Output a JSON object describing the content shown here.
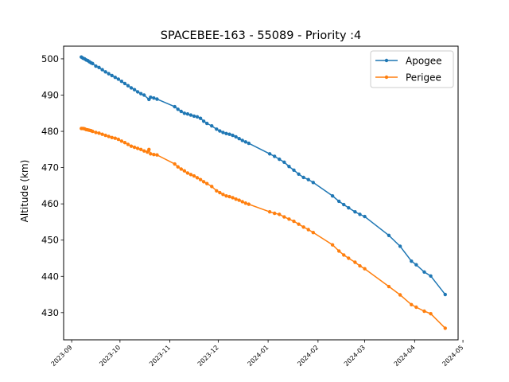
{
  "chart_data": {
    "type": "line",
    "title": "SPACEBEE-163 - 55089 - Priority :4",
    "xlabel": "",
    "ylabel": "Altitude (km)",
    "ylim": [
      422.5,
      503.5
    ],
    "xlim": [
      "2023-08-27",
      "2024-04-28"
    ],
    "x_ticks": [
      "2023-09",
      "2023-10",
      "2023-11",
      "2023-12",
      "2024-01",
      "2024-02",
      "2024-03",
      "2024-04",
      "2024-05"
    ],
    "y_ticks": [
      430,
      440,
      450,
      460,
      470,
      480,
      490,
      500
    ],
    "grid": false,
    "legend": "top-right",
    "colors": {
      "Apogee": "#1f77b4",
      "Perigee": "#ff7f0e"
    },
    "series": [
      {
        "name": "Apogee",
        "points": [
          [
            "2023-09-07",
            500.5
          ],
          [
            "2023-09-08",
            500.2
          ],
          [
            "2023-09-09",
            500.0
          ],
          [
            "2023-09-10",
            499.7
          ],
          [
            "2023-09-11",
            499.5
          ],
          [
            "2023-09-12",
            499.2
          ],
          [
            "2023-09-13",
            498.9
          ],
          [
            "2023-09-14",
            498.7
          ],
          [
            "2023-09-16",
            498.0
          ],
          [
            "2023-09-18",
            497.6
          ],
          [
            "2023-09-20",
            497.0
          ],
          [
            "2023-09-22",
            496.4
          ],
          [
            "2023-09-24",
            495.9
          ],
          [
            "2023-09-26",
            495.4
          ],
          [
            "2023-09-28",
            494.9
          ],
          [
            "2023-09-30",
            494.4
          ],
          [
            "2023-10-02",
            493.8
          ],
          [
            "2023-10-04",
            493.2
          ],
          [
            "2023-10-06",
            492.6
          ],
          [
            "2023-10-08",
            492.0
          ],
          [
            "2023-10-10",
            491.5
          ],
          [
            "2023-10-12",
            490.9
          ],
          [
            "2023-10-14",
            490.4
          ],
          [
            "2023-10-16",
            490.0
          ],
          [
            "2023-10-19",
            488.8
          ],
          [
            "2023-10-20",
            489.4
          ],
          [
            "2023-10-22",
            489.2
          ],
          [
            "2023-10-24",
            488.9
          ],
          [
            "2023-11-04",
            486.8
          ],
          [
            "2023-11-06",
            486.1
          ],
          [
            "2023-11-08",
            485.5
          ],
          [
            "2023-11-10",
            485.0
          ],
          [
            "2023-11-12",
            484.8
          ],
          [
            "2023-11-14",
            484.5
          ],
          [
            "2023-11-16",
            484.2
          ],
          [
            "2023-11-18",
            484.0
          ],
          [
            "2023-11-20",
            483.6
          ],
          [
            "2023-11-22",
            482.8
          ],
          [
            "2023-11-24",
            482.2
          ],
          [
            "2023-11-27",
            481.5
          ],
          [
            "2023-11-30",
            480.6
          ],
          [
            "2023-12-02",
            480.1
          ],
          [
            "2023-12-04",
            479.7
          ],
          [
            "2023-12-06",
            479.4
          ],
          [
            "2023-12-08",
            479.2
          ],
          [
            "2023-12-10",
            478.9
          ],
          [
            "2023-12-12",
            478.5
          ],
          [
            "2023-12-14",
            478.0
          ],
          [
            "2023-12-16",
            477.5
          ],
          [
            "2023-12-18",
            477.1
          ],
          [
            "2023-12-20",
            476.7
          ],
          [
            "2024-01-02",
            473.8
          ],
          [
            "2024-01-05",
            473.1
          ],
          [
            "2024-01-08",
            472.3
          ],
          [
            "2024-01-11",
            471.5
          ],
          [
            "2024-01-14",
            470.3
          ],
          [
            "2024-01-17",
            469.3
          ],
          [
            "2024-01-20",
            468.2
          ],
          [
            "2024-01-23",
            467.3
          ],
          [
            "2024-01-26",
            466.7
          ],
          [
            "2024-01-29",
            465.9
          ],
          [
            "2024-02-10",
            462.2
          ],
          [
            "2024-02-14",
            460.7
          ],
          [
            "2024-02-17",
            459.8
          ],
          [
            "2024-02-20",
            458.9
          ],
          [
            "2024-02-24",
            457.8
          ],
          [
            "2024-02-27",
            457.1
          ],
          [
            "2024-03-01",
            456.5
          ],
          [
            "2024-03-16",
            451.3
          ],
          [
            "2024-03-23",
            448.3
          ],
          [
            "2024-03-30",
            444.2
          ],
          [
            "2024-04-02",
            443.2
          ],
          [
            "2024-04-07",
            441.2
          ],
          [
            "2024-04-11",
            440.1
          ],
          [
            "2024-04-20",
            435.0
          ]
        ]
      },
      {
        "name": "Perigee",
        "points": [
          [
            "2023-09-07",
            480.8
          ],
          [
            "2023-09-08",
            480.8
          ],
          [
            "2023-09-09",
            480.7
          ],
          [
            "2023-09-10",
            480.5
          ],
          [
            "2023-09-11",
            480.4
          ],
          [
            "2023-09-12",
            480.3
          ],
          [
            "2023-09-13",
            480.2
          ],
          [
            "2023-09-14",
            480.0
          ],
          [
            "2023-09-16",
            479.7
          ],
          [
            "2023-09-18",
            479.5
          ],
          [
            "2023-09-20",
            479.2
          ],
          [
            "2023-09-22",
            478.9
          ],
          [
            "2023-09-24",
            478.6
          ],
          [
            "2023-09-26",
            478.3
          ],
          [
            "2023-09-28",
            478.1
          ],
          [
            "2023-09-30",
            477.8
          ],
          [
            "2023-10-02",
            477.3
          ],
          [
            "2023-10-04",
            476.9
          ],
          [
            "2023-10-06",
            476.4
          ],
          [
            "2023-10-08",
            475.9
          ],
          [
            "2023-10-10",
            475.6
          ],
          [
            "2023-10-12",
            475.3
          ],
          [
            "2023-10-14",
            475.0
          ],
          [
            "2023-10-16",
            474.6
          ],
          [
            "2023-10-18",
            474.3
          ],
          [
            "2023-10-19",
            475.0
          ],
          [
            "2023-10-20",
            473.8
          ],
          [
            "2023-10-22",
            473.6
          ],
          [
            "2023-10-24",
            473.5
          ],
          [
            "2023-11-04",
            471.0
          ],
          [
            "2023-11-06",
            470.2
          ],
          [
            "2023-11-08",
            469.6
          ],
          [
            "2023-11-10",
            469.1
          ],
          [
            "2023-11-12",
            468.5
          ],
          [
            "2023-11-14",
            468.1
          ],
          [
            "2023-11-16",
            467.7
          ],
          [
            "2023-11-18",
            467.2
          ],
          [
            "2023-11-20",
            466.7
          ],
          [
            "2023-11-22",
            466.1
          ],
          [
            "2023-11-24",
            465.6
          ],
          [
            "2023-11-27",
            464.8
          ],
          [
            "2023-11-30",
            463.6
          ],
          [
            "2023-12-02",
            463.1
          ],
          [
            "2023-12-04",
            462.6
          ],
          [
            "2023-12-06",
            462.2
          ],
          [
            "2023-12-08",
            462.0
          ],
          [
            "2023-12-10",
            461.7
          ],
          [
            "2023-12-12",
            461.3
          ],
          [
            "2023-12-14",
            461.0
          ],
          [
            "2023-12-16",
            460.6
          ],
          [
            "2023-12-18",
            460.2
          ],
          [
            "2023-12-20",
            459.9
          ],
          [
            "2024-01-02",
            457.8
          ],
          [
            "2024-01-05",
            457.4
          ],
          [
            "2024-01-08",
            457.1
          ],
          [
            "2024-01-11",
            456.4
          ],
          [
            "2024-01-14",
            455.8
          ],
          [
            "2024-01-17",
            455.2
          ],
          [
            "2024-01-20",
            454.4
          ],
          [
            "2024-01-23",
            453.6
          ],
          [
            "2024-01-26",
            452.9
          ],
          [
            "2024-01-29",
            452.1
          ],
          [
            "2024-02-10",
            448.7
          ],
          [
            "2024-02-14",
            447.0
          ],
          [
            "2024-02-17",
            445.9
          ],
          [
            "2024-02-20",
            445.0
          ],
          [
            "2024-02-24",
            443.9
          ],
          [
            "2024-02-27",
            442.9
          ],
          [
            "2024-03-01",
            442.1
          ],
          [
            "2024-03-16",
            437.2
          ],
          [
            "2024-03-23",
            434.9
          ],
          [
            "2024-03-30",
            432.2
          ],
          [
            "2024-04-02",
            431.5
          ],
          [
            "2024-04-07",
            430.4
          ],
          [
            "2024-04-11",
            429.7
          ],
          [
            "2024-04-20",
            425.7
          ]
        ]
      }
    ]
  }
}
